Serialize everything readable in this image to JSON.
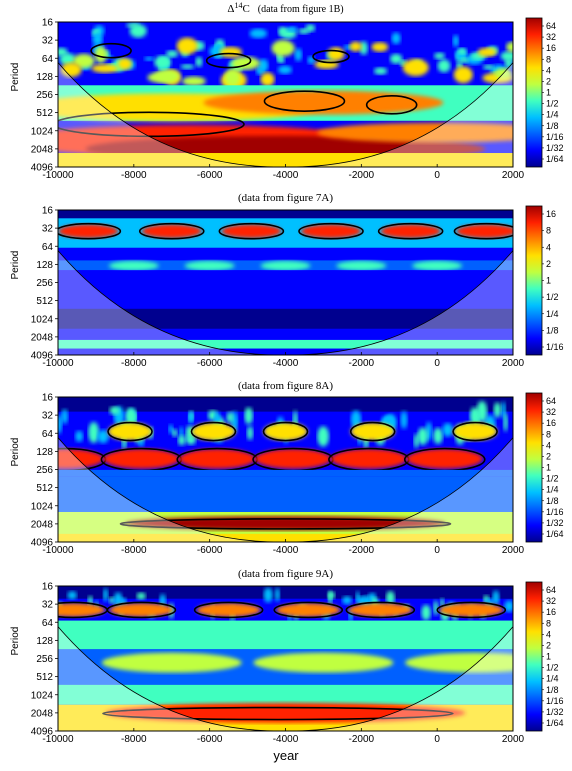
{
  "figure": {
    "xlabel": "year",
    "ylabel": "Period"
  },
  "colorscale": [
    "#00008f",
    "#0000ff",
    "#0060ff",
    "#00c0ff",
    "#40ffc0",
    "#c0ff40",
    "#ffe000",
    "#ff8000",
    "#ff2000",
    "#a00000"
  ],
  "chart_data": [
    {
      "type": "heatmap",
      "title": "Δ",
      "title_sup": "14",
      "title_tail": "C",
      "title_suffix": "(data from figure 1B)",
      "ylabel": "Period",
      "x_ticks": [
        -10000,
        -8000,
        -6000,
        -4000,
        -2000,
        0,
        2000
      ],
      "x_range": [
        -10000,
        2000
      ],
      "y_ticks": [
        "16",
        "32",
        "64",
        "128",
        "256",
        "512",
        "1024",
        "2048",
        "4096"
      ],
      "y_range": [
        16,
        4096
      ],
      "y_scale": "log2",
      "colorbar_ticks": [
        "64",
        "32",
        "16",
        "8",
        "4",
        "2",
        "1",
        "1/2",
        "1/4",
        "1/8",
        "1/16",
        "1/32",
        "1/64"
      ]
    },
    {
      "type": "heatmap",
      "title": "(data from figure 7A)",
      "ylabel": "Period",
      "x_ticks": [
        -10000,
        -8000,
        -6000,
        -4000,
        -2000,
        0,
        2000
      ],
      "x_range": [
        -10000,
        2000
      ],
      "y_ticks": [
        "16",
        "32",
        "64",
        "128",
        "256",
        "512",
        "1024",
        "2048",
        "4096"
      ],
      "y_range": [
        16,
        4096
      ],
      "y_scale": "log2",
      "colorbar_ticks": [
        "16",
        "8",
        "4",
        "2",
        "1",
        "1/2",
        "1/4",
        "1/8",
        "1/16"
      ]
    },
    {
      "type": "heatmap",
      "title": "(data from figure 8A)",
      "ylabel": "Period",
      "x_ticks": [
        -10000,
        -8000,
        -6000,
        -4000,
        -2000,
        0,
        2000
      ],
      "x_range": [
        -10000,
        2000
      ],
      "y_ticks": [
        "16",
        "32",
        "64",
        "128",
        "256",
        "512",
        "1024",
        "2048",
        "4096"
      ],
      "y_range": [
        16,
        4096
      ],
      "y_scale": "log2",
      "colorbar_ticks": [
        "64",
        "32",
        "16",
        "8",
        "4",
        "2",
        "1",
        "1/2",
        "1/4",
        "1/8",
        "1/16",
        "1/32",
        "1/64"
      ]
    },
    {
      "type": "heatmap",
      "title": "(data from figure 9A)",
      "ylabel": "Period",
      "x_ticks": [
        -10000,
        -8000,
        -6000,
        -4000,
        -2000,
        0,
        2000
      ],
      "x_range": [
        -10000,
        2000
      ],
      "y_ticks": [
        "16",
        "32",
        "64",
        "128",
        "256",
        "512",
        "1024",
        "2048",
        "4096"
      ],
      "y_range": [
        16,
        4096
      ],
      "y_scale": "log2",
      "colorbar_ticks": [
        "64",
        "32",
        "16",
        "8",
        "4",
        "2",
        "1",
        "1/2",
        "1/4",
        "1/8",
        "1/16",
        "1/32",
        "1/64"
      ]
    }
  ]
}
